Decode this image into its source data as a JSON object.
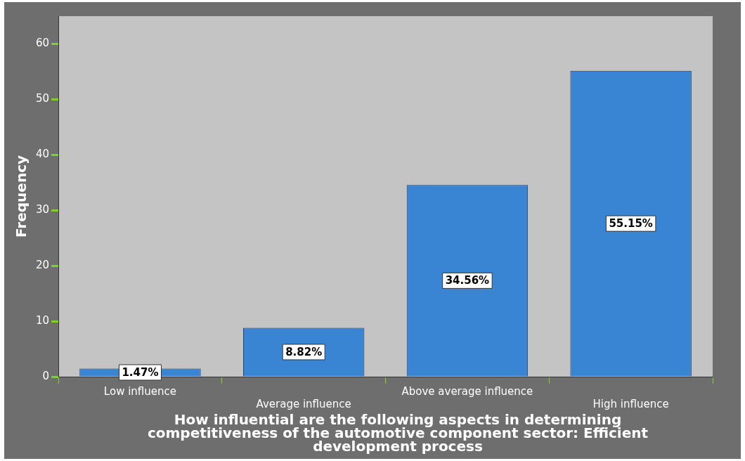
{
  "chart_data": {
    "type": "bar",
    "xlabel": "How influential are the following aspects in determining competitiveness of the automotive component sector: Efficient development process",
    "ylabel": "Frequency",
    "categories": [
      "Low influence",
      "Average influence",
      "Above average influence",
      "High influence"
    ],
    "values": [
      1.47,
      8.82,
      34.56,
      55.15
    ],
    "value_labels": [
      "1.47%",
      "8.82%",
      "34.56%",
      "55.15%"
    ],
    "color": "#3a84d4",
    "ylim": [
      0,
      65
    ],
    "yticks": [
      0,
      10,
      20,
      30,
      40,
      50,
      60
    ],
    "grid": false,
    "legend": false
  }
}
